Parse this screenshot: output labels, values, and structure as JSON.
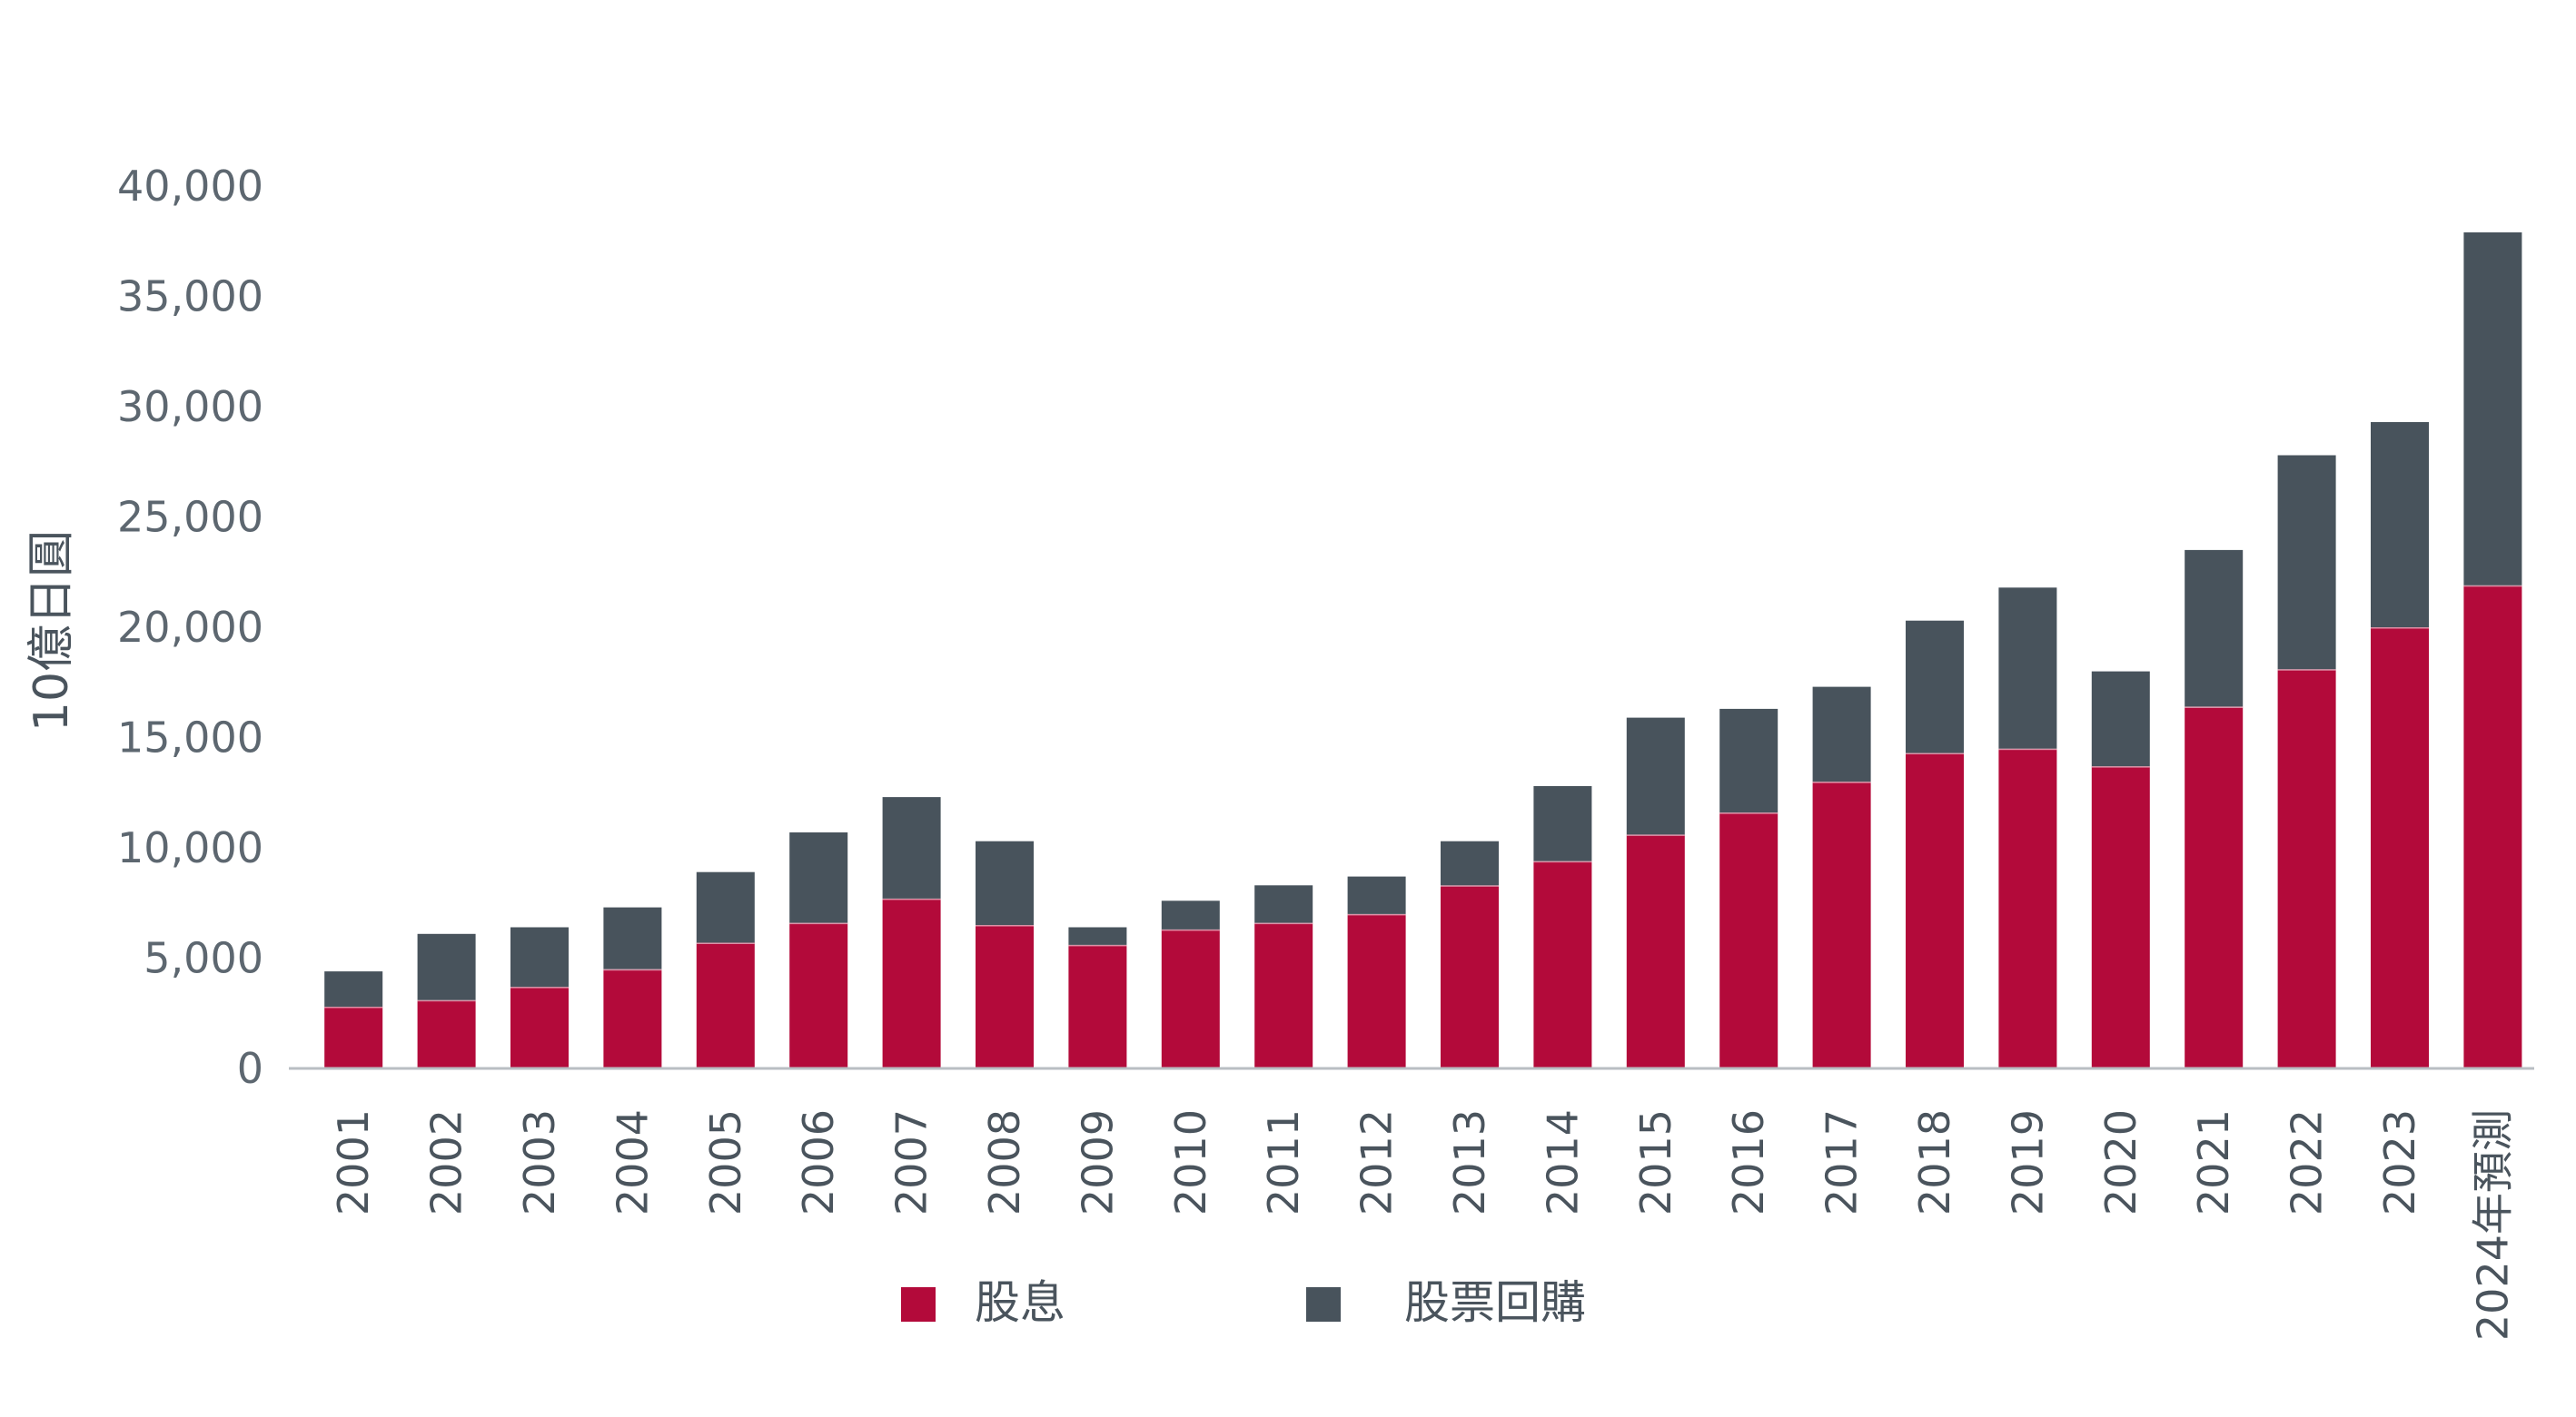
{
  "chart_data": {
    "type": "bar",
    "stacked": true,
    "title": "",
    "xlabel": "",
    "ylabel": "10億日圓",
    "ylim": [
      0,
      40000
    ],
    "yticks": [
      0,
      5000,
      10000,
      15000,
      20000,
      25000,
      30000,
      35000,
      40000
    ],
    "ytick_labels": [
      "0",
      "5,000",
      "10,000",
      "15,000",
      "20,000",
      "25,000",
      "30,000",
      "35,000",
      "40,000"
    ],
    "grid": false,
    "legend_position": "bottom",
    "categories": [
      "2001",
      "2002",
      "2003",
      "2004",
      "2005",
      "2006",
      "2007",
      "2008",
      "2009",
      "2010",
      "2011",
      "2012",
      "2013",
      "2014",
      "2015",
      "2016",
      "2017",
      "2018",
      "2019",
      "2020",
      "2021",
      "2022",
      "2023",
      "2024年預測"
    ],
    "series": [
      {
        "name": "股息",
        "color": "#b30a3a",
        "values": [
          2800,
          3100,
          3700,
          4500,
          5700,
          6600,
          7700,
          6500,
          5600,
          6300,
          6600,
          7000,
          8300,
          9400,
          10600,
          11600,
          13000,
          14300,
          14500,
          13700,
          16400,
          18100,
          20000,
          21900
        ]
      },
      {
        "name": "股票回購",
        "color": "#48535c",
        "values": [
          1600,
          3000,
          2700,
          2800,
          3200,
          4100,
          4600,
          3800,
          800,
          1300,
          1700,
          1700,
          2000,
          3400,
          5300,
          4700,
          4300,
          6000,
          7300,
          4300,
          7100,
          9700,
          9300,
          16000
        ]
      }
    ]
  }
}
